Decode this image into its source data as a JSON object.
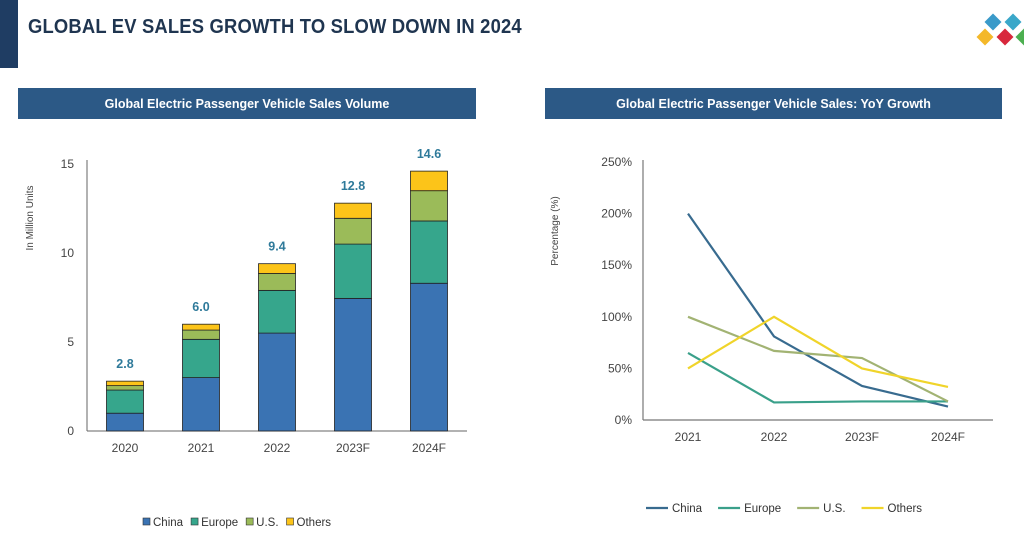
{
  "title": "GLOBAL EV SALES GROWTH TO SLOW DOWN IN 2024",
  "colors": {
    "China": "#3a73b3",
    "Europe": "#36a68c",
    "U.S.": "#9bbb59",
    "Others": "#fcc419",
    "header": "#2c5986",
    "label": "#2f7a9a"
  },
  "line_colors": {
    "China": "#386b8f",
    "Europe": "#3aa08a",
    "U.S.": "#a2b373",
    "Others": "#f0d42a"
  },
  "chart_data": [
    {
      "type": "bar",
      "stacked": true,
      "title": "Global Electric Passenger Vehicle Sales Volume",
      "ylabel": "In Million Units",
      "xlabel": "",
      "ylim": [
        0,
        15
      ],
      "yticks": [
        "0",
        "5",
        "10",
        "15"
      ],
      "categories": [
        "2020",
        "2021",
        "2022",
        "2023F",
        "2024F"
      ],
      "series": [
        {
          "name": "China",
          "values": [
            1.0,
            3.0,
            5.5,
            7.45,
            8.3
          ]
        },
        {
          "name": "Europe",
          "values": [
            1.3,
            2.15,
            2.4,
            3.05,
            3.5
          ]
        },
        {
          "name": "U.S.",
          "values": [
            0.25,
            0.52,
            0.95,
            1.45,
            1.7
          ]
        },
        {
          "name": "Others",
          "values": [
            0.25,
            0.33,
            0.55,
            0.85,
            1.1
          ]
        }
      ],
      "totals": [
        "2.8",
        "6.0",
        "9.4",
        "12.8",
        "14.6"
      ],
      "legend": "bottom",
      "grid": false
    },
    {
      "type": "line",
      "title": "Global Electric Passenger Vehicle Sales: YoY Growth",
      "ylabel": "Percentage (%)",
      "xlabel": "",
      "ylim": [
        0,
        250
      ],
      "yticks": [
        "0%",
        "50%",
        "100%",
        "150%",
        "200%",
        "250%"
      ],
      "categories": [
        "2021",
        "2022",
        "2023F",
        "2024F"
      ],
      "series": [
        {
          "name": "China",
          "values": [
            200,
            81,
            33,
            13
          ]
        },
        {
          "name": "Europe",
          "values": [
            65,
            17,
            18,
            18
          ]
        },
        {
          "name": "U.S.",
          "values": [
            100,
            67,
            60,
            18
          ]
        },
        {
          "name": "Others",
          "values": [
            50,
            100,
            50,
            32
          ]
        }
      ],
      "legend": "bottom",
      "grid": false
    }
  ]
}
